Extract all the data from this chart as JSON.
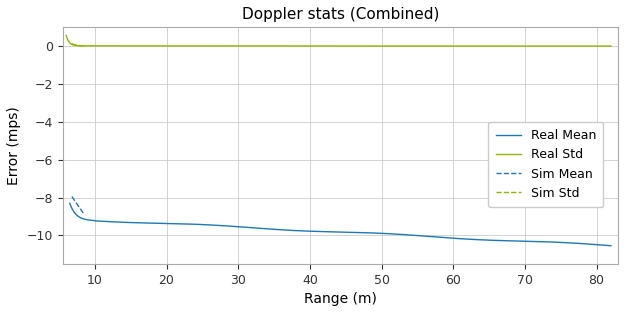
{
  "title": "Doppler stats (Combined)",
  "xlabel": "Range (m)",
  "ylabel": "Error (mps)",
  "xlim": [
    5.5,
    83
  ],
  "ylim": [
    -11.5,
    1.0
  ],
  "yticks": [
    0,
    -2,
    -4,
    -6,
    -8,
    -10
  ],
  "xticks": [
    10,
    20,
    30,
    40,
    50,
    60,
    70,
    80
  ],
  "grid": true,
  "legend_labels": [
    "Real Mean",
    "Real Std",
    "Sim Mean",
    "Sim Std"
  ],
  "real_mean_color": "#1f77b4",
  "real_std_color": "#8db600",
  "sim_mean_color": "#1f77b4",
  "sim_std_color": "#8db600",
  "background_color": "#ffffff",
  "title_fontsize": 11
}
